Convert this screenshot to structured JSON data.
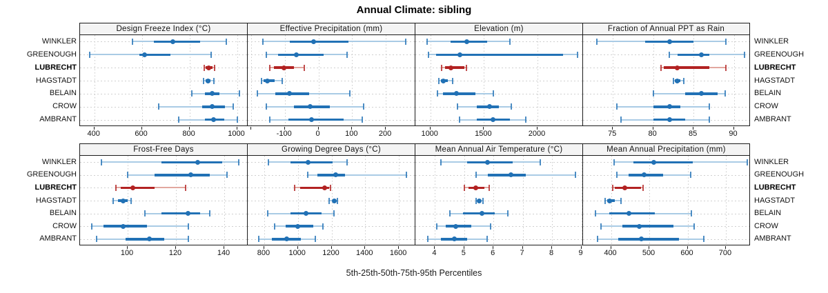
{
  "title": "Annual Climate: sibling",
  "xlabel": "5th-25th-50th-75th-95th Percentiles",
  "sites": [
    "WINKLER",
    "GREENOUGH",
    "LUBRECHT",
    "HAGSTADT",
    "BELAIN",
    "CROW",
    "AMBRANT"
  ],
  "highlight_site": "LUBRECHT",
  "colors": {
    "main": "#2171b5",
    "main_light": "#a9cbe5",
    "highlight": "#b22222",
    "highlight_light": "#e2a79f",
    "grid": "#cfcfcf",
    "strip_bg": "#f4f4f4",
    "border": "#1a1a1a"
  },
  "chart_data": {
    "type": "dotplot-percentiles",
    "percentile_labels": [
      "5th",
      "25th",
      "50th",
      "75th",
      "95th"
    ],
    "legend_position": "none",
    "grid": "dotted",
    "panels": [
      {
        "title": "Design Freeze Index (°C)",
        "row": 0,
        "col": 0,
        "xlim": [
          340,
          1045
        ],
        "ticks": [
          400,
          600,
          800,
          1000
        ],
        "extra_ticks": [],
        "values": {
          "WINKLER": [
            560,
            650,
            730,
            845,
            955
          ],
          "GREENOUGH": [
            380,
            590,
            610,
            720,
            890
          ],
          "LUBRECHT": [
            862,
            868,
            880,
            898,
            906
          ],
          "HAGSTADT": [
            858,
            869,
            877,
            888,
            902
          ],
          "BELAIN": [
            810,
            865,
            895,
            925,
            1010
          ],
          "CROW": [
            670,
            852,
            896,
            950,
            985
          ],
          "AMBRANT": [
            755,
            865,
            900,
            945,
            1000
          ]
        }
      },
      {
        "title": "Effective Precipitation (mm)",
        "row": 0,
        "col": 1,
        "xlim": [
          -210,
          288
        ],
        "ticks": [
          -100,
          0,
          100,
          200
        ],
        "extra_ticks": [
          -200
        ],
        "values": {
          "WINKLER": [
            -165,
            -85,
            -15,
            90,
            260
          ],
          "GREENOUGH": [
            -155,
            -120,
            -65,
            15,
            85
          ],
          "LUBRECHT": [
            -145,
            -132,
            -103,
            -72,
            -43
          ],
          "HAGSTADT": [
            -170,
            -163,
            -151,
            -130,
            -107
          ],
          "BELAIN": [
            -182,
            -128,
            -86,
            -27,
            93
          ],
          "CROW": [
            -155,
            -72,
            -25,
            35,
            135
          ],
          "AMBRANT": [
            -145,
            -90,
            -20,
            75,
            130
          ]
        }
      },
      {
        "title": "Elevation (m)",
        "row": 0,
        "col": 2,
        "xlim": [
          860,
          2425
        ],
        "ticks": [
          1000,
          1500,
          2000
        ],
        "extra_ticks": [],
        "values": {
          "WINKLER": [
            970,
            1185,
            1340,
            1530,
            1745
          ],
          "GREENOUGH": [
            985,
            1055,
            1277,
            2240,
            2370
          ],
          "LUBRECHT": [
            1105,
            1135,
            1192,
            1320,
            1335
          ],
          "HAGSTADT": [
            1080,
            1098,
            1118,
            1160,
            1208
          ],
          "BELAIN": [
            1065,
            1120,
            1240,
            1420,
            1590
          ],
          "CROW": [
            1250,
            1430,
            1550,
            1640,
            1755
          ],
          "AMBRANT": [
            1270,
            1430,
            1585,
            1740,
            1890
          ]
        }
      },
      {
        "title": "Fraction of Annual PPT as Rain",
        "row": 0,
        "col": 3,
        "xlim": [
          71.3,
          92.1
        ],
        "ticks": [
          75,
          80,
          85,
          90
        ],
        "extra_ticks": [],
        "values": {
          "WINKLER": [
            73,
            79,
            82,
            85,
            89
          ],
          "GREENOUGH": [
            82,
            83,
            86,
            87,
            91.3
          ],
          "LUBRECHT": [
            81,
            81.3,
            83,
            87,
            89
          ],
          "HAGSTADT": [
            82.5,
            82.7,
            83,
            83.4,
            83.8
          ],
          "BELAIN": [
            80,
            84,
            86,
            88,
            88.9
          ],
          "CROW": [
            75.5,
            80,
            82,
            83.4,
            87
          ],
          "AMBRANT": [
            76,
            80,
            82,
            84,
            87
          ]
        }
      },
      {
        "title": "Frost-Free Days",
        "row": 1,
        "col": 0,
        "xlim": [
          80.3,
          149.7
        ],
        "ticks": [
          100,
          120,
          140
        ],
        "extra_ticks": [],
        "values": {
          "WINKLER": [
            89,
            114,
            129,
            139,
            146
          ],
          "GREENOUGH": [
            100,
            111,
            126,
            134,
            141
          ],
          "LUBRECHT": [
            95,
            97,
            102,
            111,
            124
          ],
          "HAGSTADT": [
            94,
            96,
            98,
            100,
            101.5
          ],
          "BELAIN": [
            107,
            114,
            125,
            130,
            134
          ],
          "CROW": [
            85,
            90,
            98,
            108,
            125
          ],
          "AMBRANT": [
            87,
            99,
            109,
            115,
            125
          ]
        }
      },
      {
        "title": "Growing Degree Days (°C)",
        "row": 1,
        "col": 1,
        "xlim": [
          702,
          1698
        ],
        "ticks": [
          800,
          1000,
          1200,
          1400,
          1600
        ],
        "extra_ticks": [],
        "values": {
          "WINKLER": [
            825,
            955,
            1060,
            1205,
            1290
          ],
          "GREENOUGH": [
            1060,
            1115,
            1225,
            1280,
            1645
          ],
          "LUBRECHT": [
            980,
            1015,
            1160,
            1185,
            1195
          ],
          "HAGSTADT": [
            1185,
            1205,
            1218,
            1228,
            1235
          ],
          "BELAIN": [
            822,
            955,
            1050,
            1140,
            1215
          ],
          "CROW": [
            863,
            928,
            1000,
            1090,
            1150
          ],
          "AMBRANT": [
            768,
            845,
            935,
            1016,
            1105
          ]
        }
      },
      {
        "title": "Mean Annual Air Temperature (°C)",
        "row": 1,
        "col": 2,
        "xlim": [
          3.33,
          9.06
        ],
        "ticks": [
          4,
          5,
          6,
          7,
          8,
          9
        ],
        "extra_ticks": [],
        "values": {
          "WINKLER": [
            4.2,
            5.1,
            5.8,
            6.65,
            7.6
          ],
          "GREENOUGH": [
            5.4,
            5.8,
            6.6,
            7.1,
            8.8
          ],
          "LUBRECHT": [
            5.0,
            5.15,
            5.4,
            5.7,
            5.85
          ],
          "HAGSTADT": [
            5.4,
            5.45,
            5.5,
            5.56,
            5.63
          ],
          "BELAIN": [
            4.5,
            4.95,
            5.6,
            6.05,
            6.5
          ],
          "CROW": [
            4.05,
            4.36,
            4.7,
            5.25,
            5.9
          ],
          "AMBRANT": [
            3.75,
            4.2,
            4.65,
            5.1,
            5.77
          ]
        }
      },
      {
        "title": "Mean Annual Precipitation (mm)",
        "row": 1,
        "col": 3,
        "xlim": [
          327,
          765
        ],
        "ticks": [
          400,
          500,
          600,
          700
        ],
        "extra_ticks": [],
        "values": {
          "WINKLER": [
            408,
            458,
            511,
            614,
            755
          ],
          "GREENOUGH": [
            415,
            446,
            486,
            536,
            608
          ],
          "LUBRECHT": [
            404,
            410,
            436,
            478,
            484
          ],
          "HAGSTADT": [
            385,
            390,
            397,
            410,
            426
          ],
          "BELAIN": [
            360,
            396,
            446,
            515,
            610
          ],
          "CROW": [
            374,
            430,
            474,
            563,
            618
          ],
          "AMBRANT": [
            364,
            418,
            480,
            578,
            642
          ]
        }
      }
    ]
  }
}
